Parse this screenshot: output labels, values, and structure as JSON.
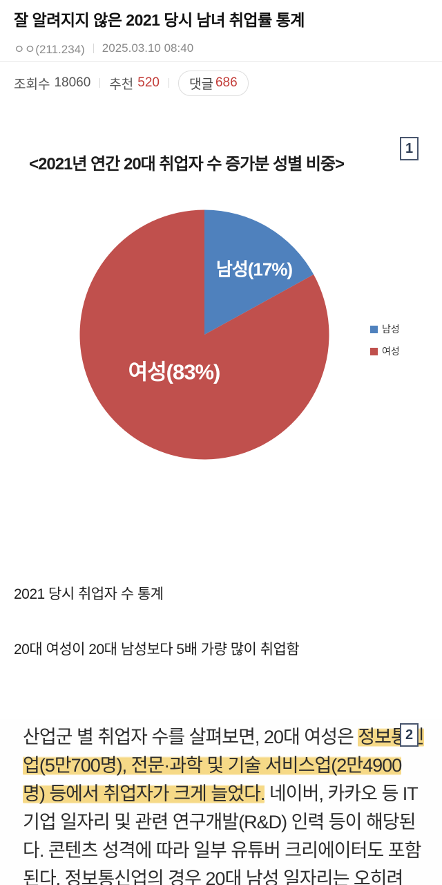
{
  "post": {
    "title": "잘 알려지지 않은 2021 당시 남녀 취업률 통계",
    "author": "ㅇㅇ(211.234)",
    "date": "2025.03.10 08:40",
    "stats": {
      "views_label": "조회수",
      "views": "18060",
      "likes_label": "추천",
      "likes": "520",
      "comments_label": "댓글",
      "comments": "686"
    }
  },
  "image_badges": {
    "first": "1",
    "second": "2"
  },
  "chart_data": {
    "type": "pie",
    "title": "<2021년 연간 20대 취업자 수 증가분 성별 비중>",
    "categories": [
      "남성",
      "여성"
    ],
    "values": [
      17,
      83
    ],
    "unit": "%",
    "slice_labels": [
      "남성(17%)",
      "여성(83%)"
    ],
    "colors": [
      "#4F81BD",
      "#C0504D"
    ],
    "legend": [
      "남성",
      "여성"
    ],
    "legend_position": "right",
    "start_angle": "12 o'clock, clockwise"
  },
  "body": {
    "para1": "2021 당시 취업자 수 통계",
    "para2": "20대 여성이 20대 남성보다 5배 가량 많이 취업함"
  },
  "article": {
    "highlight_color": "#f3cd5f",
    "lines": [
      [
        {
          "t": "산업군 별 취업자 수를 살펴보면, 20대 여성은 ",
          "h": false
        },
        {
          "t": "정보통신",
          "h": true
        }
      ],
      [
        {
          "t": "업(5만700명), 전문·과학 및 기술 서비스업(2만4900",
          "h": true
        }
      ],
      [
        {
          "t": "명) 등에서 취업자가 크게 늘었다.",
          "h": true
        },
        {
          "t": " 네이버, 카카오 등 IT",
          "h": false
        }
      ],
      [
        {
          "t": "기업 일자리 및 관련 연구개발(R&D) 인력 등이 해당된",
          "h": false
        }
      ],
      [
        {
          "t": "다. 콘텐츠 성격에 따라 일부 유튜버 크리에이터도 포함",
          "h": false
        }
      ],
      [
        {
          "t": "된다. 정보통신업의 경우 20대 남성 일자리는 오히려",
          "h": false
        }
      ]
    ]
  },
  "colors": {
    "accent_red": "#c33d39",
    "pie_blue": "#4F81BD",
    "pie_red": "#C0504D",
    "badge_border": "#49566e"
  }
}
